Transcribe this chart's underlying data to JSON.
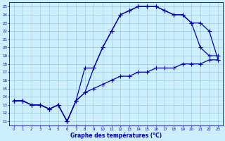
{
  "xlabel": "Graphe des températures (°C)",
  "bg_color": "#cceeff",
  "grid_color": "#99ccdd",
  "line_color": "#0000bb",
  "xlim": [
    -0.5,
    23.5
  ],
  "ylim": [
    10.5,
    25.5
  ],
  "xticks": [
    0,
    1,
    2,
    3,
    4,
    5,
    6,
    7,
    8,
    9,
    10,
    11,
    12,
    13,
    14,
    15,
    16,
    17,
    18,
    19,
    20,
    21,
    22,
    23
  ],
  "yticks": [
    11,
    12,
    13,
    14,
    15,
    16,
    17,
    18,
    19,
    20,
    21,
    22,
    23,
    24,
    25
  ],
  "line1_x": [
    0,
    1,
    2,
    3,
    4,
    5,
    6,
    7,
    8,
    9,
    10,
    11,
    12,
    13,
    14,
    15,
    16,
    17,
    18,
    19,
    20,
    21,
    22,
    23
  ],
  "line1_y": [
    13.5,
    13.5,
    13.0,
    13.0,
    12.5,
    13.0,
    11.0,
    13.5,
    14.5,
    15.0,
    15.5,
    16.0,
    16.5,
    16.5,
    17.0,
    17.0,
    17.5,
    17.5,
    17.5,
    18.0,
    18.0,
    18.0,
    18.5,
    18.5
  ],
  "line2_x": [
    0,
    1,
    2,
    3,
    4,
    5,
    6,
    7,
    8,
    9,
    10,
    11,
    12,
    13,
    14,
    15,
    16,
    17,
    18,
    19,
    20,
    21,
    22,
    23
  ],
  "line2_y": [
    13.5,
    13.5,
    13.0,
    13.0,
    12.5,
    13.0,
    11.0,
    13.5,
    17.5,
    17.5,
    20.0,
    22.0,
    24.0,
    24.5,
    25.0,
    25.0,
    25.0,
    24.5,
    24.0,
    24.0,
    23.0,
    20.0,
    19.0,
    19.0
  ],
  "line3_x": [
    0,
    1,
    2,
    3,
    4,
    5,
    6,
    7,
    8,
    9,
    10,
    11,
    12,
    13,
    14,
    15,
    16,
    17,
    18,
    19,
    20,
    21,
    22,
    23
  ],
  "line3_y": [
    13.5,
    13.5,
    13.0,
    13.0,
    12.5,
    13.0,
    11.0,
    13.5,
    14.5,
    17.5,
    20.0,
    22.0,
    24.0,
    24.5,
    25.0,
    25.0,
    25.0,
    24.5,
    24.0,
    24.0,
    23.0,
    23.0,
    22.0,
    18.5
  ]
}
